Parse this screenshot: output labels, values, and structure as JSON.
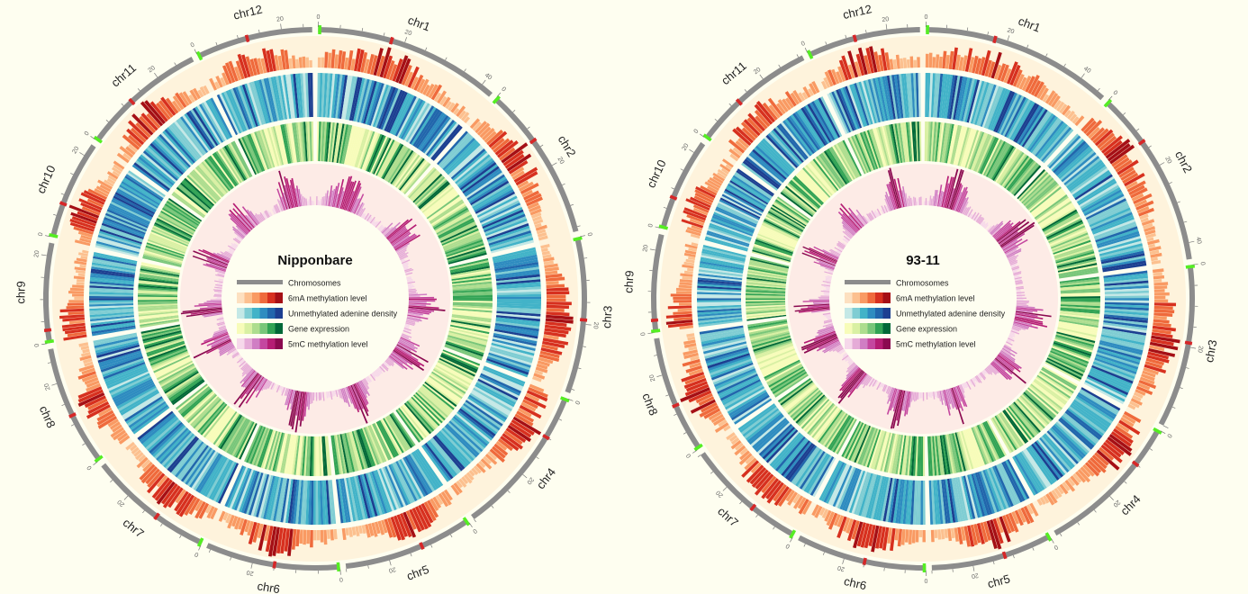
{
  "colors": {
    "background": "#fefef0",
    "chromosome": "#8c8c8c",
    "centromere": "#d62728",
    "telomere": "#55ee22",
    "track_bg_6ma": "#fef3dc",
    "track_bg_5mc": "#fdebe6",
    "mA_scale": [
      "#fde0c0",
      "#fcc08f",
      "#f99a63",
      "#ef6a3c",
      "#d7301f",
      "#a50f15"
    ],
    "unmethyl_scale": [
      "#c4e8e6",
      "#7fcdd3",
      "#42b3c8",
      "#2e8cc0",
      "#2166ac",
      "#1c3f91"
    ],
    "gene_scale": [
      "#f7fcb9",
      "#d9f0a3",
      "#addd8e",
      "#78c679",
      "#31a354",
      "#006837"
    ],
    "mC_scale": [
      "#f6d8ea",
      "#e5abd7",
      "#d07ec4",
      "#c4479f",
      "#b51d74",
      "#8b0a50"
    ]
  },
  "chart_data": [
    {
      "type": "circos",
      "title": "Nipponbare",
      "legend": [
        {
          "name": "Chromosomes",
          "kind": "chromosome"
        },
        {
          "name": "6mA methylation level",
          "kind": "mA"
        },
        {
          "name": "Unmethylated adenine density",
          "kind": "unmethyl"
        },
        {
          "name": "Gene expression",
          "kind": "gene"
        },
        {
          "name": "5mC methylation level",
          "kind": "mC"
        }
      ],
      "chromosomes": [
        {
          "name": "chr1",
          "length": 43,
          "centromere": 17,
          "ticks": [
            "0",
            "20",
            "40"
          ]
        },
        {
          "name": "chr2",
          "length": 36,
          "centromere": 13,
          "ticks": [
            "0",
            "20"
          ]
        },
        {
          "name": "chr3",
          "length": 36,
          "centromere": 19,
          "ticks": [
            "0",
            "20"
          ]
        },
        {
          "name": "chr4",
          "length": 35,
          "centromere": 10,
          "ticks": [
            "0",
            "20"
          ]
        },
        {
          "name": "chr5",
          "length": 30,
          "centromere": 12,
          "ticks": [
            "0",
            "20"
          ]
        },
        {
          "name": "chr6",
          "length": 31,
          "centromere": 15,
          "ticks": [
            "0",
            "20"
          ]
        },
        {
          "name": "chr7",
          "length": 29,
          "centromere": 12,
          "ticks": [
            "0",
            "20"
          ]
        },
        {
          "name": "chr8",
          "length": 28,
          "centromere": 12,
          "ticks": [
            "0",
            "20"
          ]
        },
        {
          "name": "chr9",
          "length": 23,
          "centromere": 3,
          "ticks": [
            "0",
            "20"
          ]
        },
        {
          "name": "chr10",
          "length": 23,
          "centromere": 8,
          "ticks": [
            "0",
            "20"
          ]
        },
        {
          "name": "chr11",
          "length": 29,
          "centromere": 12,
          "ticks": [
            "0",
            "20"
          ]
        },
        {
          "name": "chr12",
          "length": 27,
          "centromere": 12,
          "ticks": [
            "0",
            "20"
          ]
        }
      ]
    },
    {
      "type": "circos",
      "title": "93-11",
      "legend": [
        {
          "name": "Chromosomes",
          "kind": "chromosome"
        },
        {
          "name": "6mA methylation level",
          "kind": "mA"
        },
        {
          "name": "Unmethylated adenine density",
          "kind": "unmethyl"
        },
        {
          "name": "Gene expression",
          "kind": "gene"
        },
        {
          "name": "5mC methylation level",
          "kind": "mC"
        }
      ],
      "chromosomes": [
        {
          "name": "chr1",
          "length": 47,
          "centromere": 17,
          "ticks": [
            "0",
            "20",
            "40"
          ]
        },
        {
          "name": "chr2",
          "length": 44,
          "centromere": 13,
          "ticks": [
            "0",
            "20",
            "40"
          ]
        },
        {
          "name": "chr3",
          "length": 40,
          "centromere": 19,
          "ticks": [
            "0",
            "20"
          ]
        },
        {
          "name": "chr4",
          "length": 36,
          "centromere": 10,
          "ticks": [
            "0",
            "20"
          ]
        },
        {
          "name": "chr5",
          "length": 30,
          "centromere": 12,
          "ticks": [
            "0",
            "20"
          ]
        },
        {
          "name": "chr6",
          "length": 32,
          "centromere": 15,
          "ticks": [
            "0",
            "20"
          ]
        },
        {
          "name": "chr7",
          "length": 30,
          "centromere": 12,
          "ticks": [
            "0",
            "20"
          ]
        },
        {
          "name": "chr8",
          "length": 29,
          "centromere": 12,
          "ticks": [
            "0",
            "20"
          ]
        },
        {
          "name": "chr9",
          "length": 24,
          "centromere": 3,
          "ticks": [
            "0",
            "20"
          ]
        },
        {
          "name": "chr10",
          "length": 23,
          "centromere": 8,
          "ticks": [
            "0",
            "20"
          ]
        },
        {
          "name": "chr11",
          "length": 31,
          "centromere": 12,
          "ticks": [
            "0",
            "20"
          ]
        },
        {
          "name": "chr12",
          "length": 28,
          "centromere": 12,
          "ticks": [
            "0",
            "20"
          ]
        }
      ]
    }
  ]
}
